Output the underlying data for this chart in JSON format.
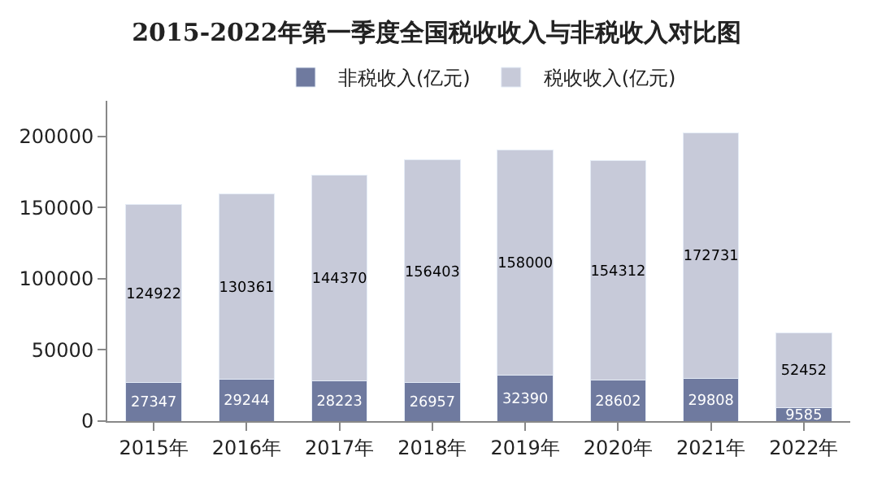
{
  "chart_data": {
    "type": "bar",
    "title": "2015-2022年第一季度全国税收收入与非税收入对比图",
    "stacked": true,
    "categories": [
      "2015年",
      "2016年",
      "2017年",
      "2018年",
      "2019年",
      "2020年",
      "2021年",
      "2022年"
    ],
    "series": [
      {
        "name": "非税收入(亿元)",
        "color": "#6f7a9f",
        "values": [
          27347,
          29244,
          28223,
          26957,
          32390,
          28602,
          29808,
          9585
        ]
      },
      {
        "name": "税收收入(亿元)",
        "color": "#c7cad9",
        "values": [
          124922,
          130361,
          144370,
          156403,
          158000,
          154312,
          172731,
          52452
        ]
      }
    ],
    "ylim": [
      0,
      225000
    ],
    "yticks": [
      0,
      50000,
      100000,
      150000,
      200000
    ],
    "data_labels": true,
    "legend": "top"
  }
}
